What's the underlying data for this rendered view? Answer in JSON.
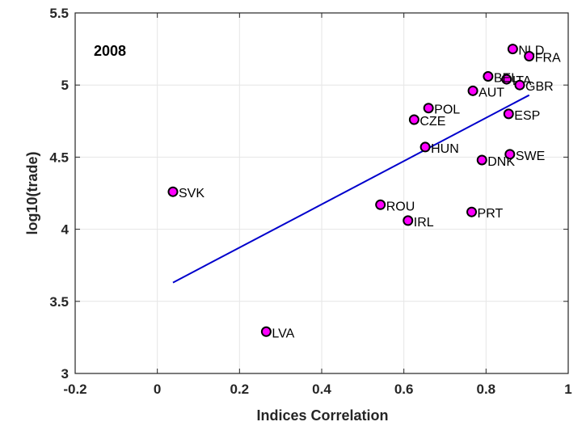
{
  "chart_data": {
    "type": "scatter",
    "title": "",
    "annotation": "2008",
    "xlabel": "Indices Correlation",
    "ylabel": "log10(trade)",
    "xlim": [
      -0.2,
      1
    ],
    "ylim": [
      3,
      5.5
    ],
    "xticks": [
      -0.2,
      0,
      0.2,
      0.4,
      0.6,
      0.8,
      1
    ],
    "xtick_labels": [
      "-0.2",
      "0",
      "0.2",
      "0.4",
      "0.6",
      "0.8",
      "1"
    ],
    "yticks": [
      3,
      3.5,
      4,
      4.5,
      5,
      5.5
    ],
    "ytick_labels": [
      "3",
      "3.5",
      "4",
      "4.5",
      "5",
      "5.5"
    ],
    "grid": true,
    "marker_fill": "#ff00ff",
    "marker_edge": "#000000",
    "line_color": "#0000cc",
    "points": [
      {
        "label": "NLD",
        "x": 0.865,
        "y": 5.25
      },
      {
        "label": "FRA",
        "x": 0.905,
        "y": 5.2
      },
      {
        "label": "ITA",
        "x": 0.85,
        "y": 5.04
      },
      {
        "label": "BEL",
        "x": 0.805,
        "y": 5.06
      },
      {
        "label": "GBR",
        "x": 0.882,
        "y": 5.0
      },
      {
        "label": "AUT",
        "x": 0.768,
        "y": 4.96
      },
      {
        "label": "POL",
        "x": 0.66,
        "y": 4.84
      },
      {
        "label": "ESP",
        "x": 0.855,
        "y": 4.8
      },
      {
        "label": "CZE",
        "x": 0.625,
        "y": 4.76
      },
      {
        "label": "HUN",
        "x": 0.652,
        "y": 4.57
      },
      {
        "label": "SWE",
        "x": 0.858,
        "y": 4.52
      },
      {
        "label": "DNK",
        "x": 0.79,
        "y": 4.48
      },
      {
        "label": "SVK",
        "x": 0.038,
        "y": 4.26
      },
      {
        "label": "ROU",
        "x": 0.543,
        "y": 4.17
      },
      {
        "label": "PRT",
        "x": 0.765,
        "y": 4.12
      },
      {
        "label": "IRL",
        "x": 0.61,
        "y": 4.06
      },
      {
        "label": "LVA",
        "x": 0.265,
        "y": 3.29
      }
    ],
    "fit_line": {
      "x": [
        0.038,
        0.905
      ],
      "y": [
        3.63,
        4.93
      ]
    }
  }
}
